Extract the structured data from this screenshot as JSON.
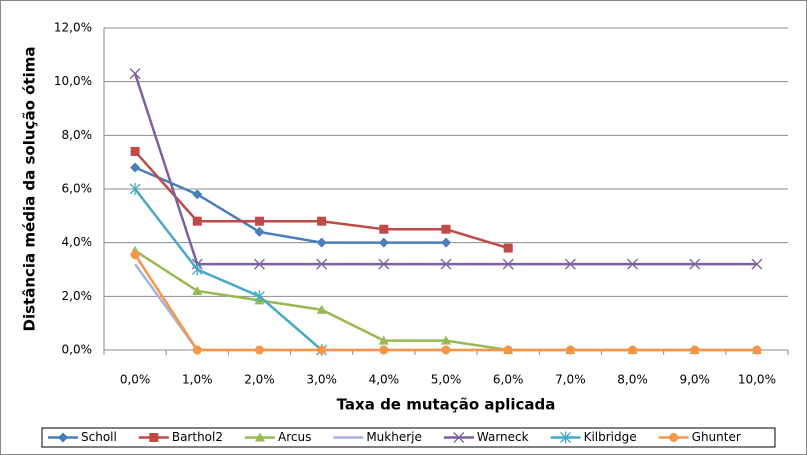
{
  "chart_data": {
    "type": "line",
    "y_label": "Distância média da solução ótima",
    "x_label": "Taxa de mutação aplicada",
    "categories": [
      "0,0%",
      "1,0%",
      "2,0%",
      "3,0%",
      "4,0%",
      "5,0%",
      "6,0%",
      "7,0%",
      "8,0%",
      "9,0%",
      "10,0%"
    ],
    "ylim": [
      0,
      12
    ],
    "yticks": [
      {
        "value": 0,
        "label": "0,0%"
      },
      {
        "value": 2,
        "label": "2,0%"
      },
      {
        "value": 4,
        "label": "4,0%"
      },
      {
        "value": 6,
        "label": "6,0%"
      },
      {
        "value": 8,
        "label": "8,0%"
      },
      {
        "value": 10,
        "label": "10,0%"
      },
      {
        "value": 12,
        "label": "12,0%"
      }
    ],
    "grid": true,
    "legend": "bottom",
    "series": [
      {
        "name": "Scholl",
        "color": "#4a7ebb",
        "marker": "diamond",
        "values": [
          6.8,
          5.8,
          4.4,
          4.0,
          4.0,
          4.0,
          null,
          null,
          null,
          null,
          null
        ]
      },
      {
        "name": "Barthol2",
        "color": "#be4b48",
        "marker": "square",
        "values": [
          7.4,
          4.8,
          4.8,
          4.8,
          4.5,
          4.5,
          3.8,
          null,
          null,
          null,
          null
        ]
      },
      {
        "name": "Arcus",
        "color": "#98b954",
        "marker": "triangle",
        "values": [
          3.7,
          2.2,
          1.85,
          1.5,
          0.35,
          0.35,
          0,
          0,
          0,
          0,
          0
        ]
      },
      {
        "name": "Mukherje",
        "color": "#a5b6d8",
        "marker": "none",
        "values": [
          3.2,
          0,
          0,
          0,
          0,
          0,
          0,
          0,
          0,
          0,
          0
        ]
      },
      {
        "name": "Warneck",
        "color": "#7d60a0",
        "marker": "x",
        "values": [
          10.3,
          3.2,
          3.2,
          3.2,
          3.2,
          3.2,
          3.2,
          3.2,
          3.2,
          3.2,
          3.2
        ]
      },
      {
        "name": "Kilbridge",
        "color": "#46aac5",
        "marker": "star",
        "values": [
          6.0,
          3.0,
          2.0,
          0,
          null,
          null,
          null,
          null,
          null,
          null,
          null
        ]
      },
      {
        "name": "Ghunter",
        "color": "#f79646",
        "marker": "circle",
        "values": [
          3.55,
          0,
          0,
          0,
          0,
          0,
          0,
          0,
          0,
          0,
          0
        ]
      }
    ]
  }
}
